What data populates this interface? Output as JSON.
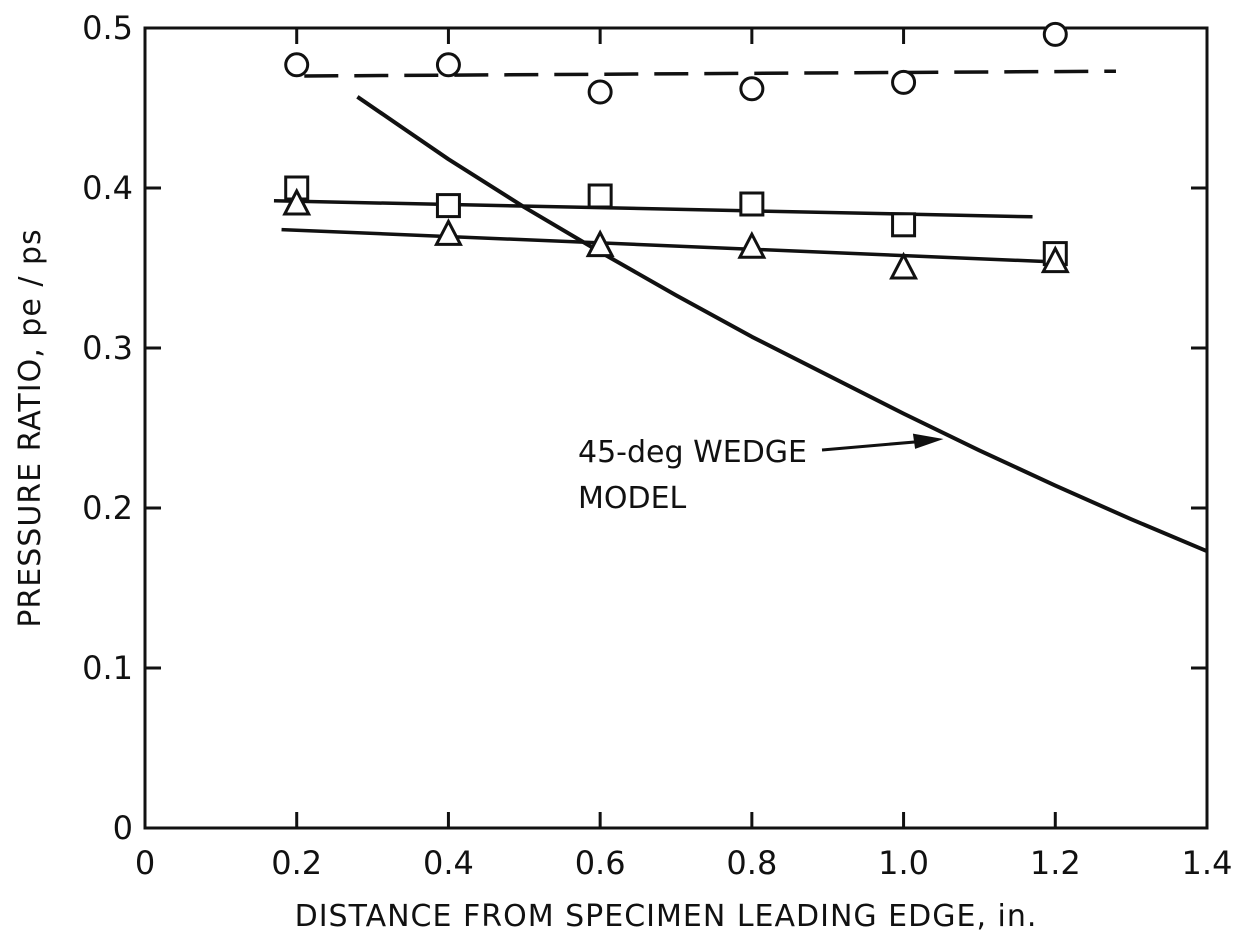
{
  "chart_data": {
    "type": "scatter",
    "xlabel": "DISTANCE FROM SPECIMEN LEADING EDGE, in.",
    "ylabel": "PRESSURE RATIO, pe / ps",
    "xlim": [
      0,
      1.4
    ],
    "ylim": [
      0,
      0.5
    ],
    "x_ticks": [
      0,
      0.2,
      0.4,
      0.6,
      0.8,
      1.0,
      1.2,
      1.4
    ],
    "x_tick_labels": [
      "0",
      "0.2",
      "0.4",
      "0.6",
      "0.8",
      "1.0",
      "1.2",
      "1.4"
    ],
    "y_ticks": [
      0,
      0.1,
      0.2,
      0.3,
      0.4,
      0.5
    ],
    "y_tick_labels": [
      "0",
      "0.1",
      "0.2",
      "0.3",
      "0.4",
      "0.5"
    ],
    "grid": false,
    "series": [
      {
        "marker": "circle",
        "x": [
          0.2,
          0.4,
          0.6,
          0.8,
          1.0,
          1.2
        ],
        "y": [
          0.477,
          0.477,
          0.46,
          0.462,
          0.466,
          0.496
        ],
        "fit_line": {
          "style": "dashed",
          "x": [
            0.21,
            1.28
          ],
          "y": [
            0.47,
            0.473
          ]
        }
      },
      {
        "marker": "square",
        "x": [
          0.2,
          0.4,
          0.6,
          0.8,
          1.0,
          1.2
        ],
        "y": [
          0.4,
          0.389,
          0.395,
          0.39,
          0.377,
          0.359
        ],
        "fit_line": {
          "style": "solid",
          "x": [
            0.17,
            1.17
          ],
          "y": [
            0.392,
            0.382
          ]
        }
      },
      {
        "marker": "triangle",
        "x": [
          0.2,
          0.4,
          0.6,
          0.8,
          1.0,
          1.2
        ],
        "y": [
          0.39,
          0.371,
          0.364,
          0.363,
          0.35,
          0.354
        ],
        "fit_line": {
          "style": "solid",
          "x": [
            0.18,
            1.19
          ],
          "y": [
            0.374,
            0.354
          ]
        }
      },
      {
        "name": "45-deg WEDGE MODEL",
        "style": "solid",
        "curve": {
          "x": [
            0.28,
            0.4,
            0.5,
            0.6,
            0.7,
            0.8,
            0.9,
            1.0,
            1.1,
            1.2,
            1.3,
            1.4
          ],
          "y": [
            0.457,
            0.418,
            0.388,
            0.36,
            0.333,
            0.307,
            0.283,
            0.259,
            0.236,
            0.214,
            0.193,
            0.173
          ]
        }
      }
    ],
    "annotations": [
      {
        "lines": [
          "45-deg WEDGE",
          "MODEL"
        ],
        "points_to": {
          "x": 1.05,
          "y": 0.243
        }
      }
    ]
  }
}
